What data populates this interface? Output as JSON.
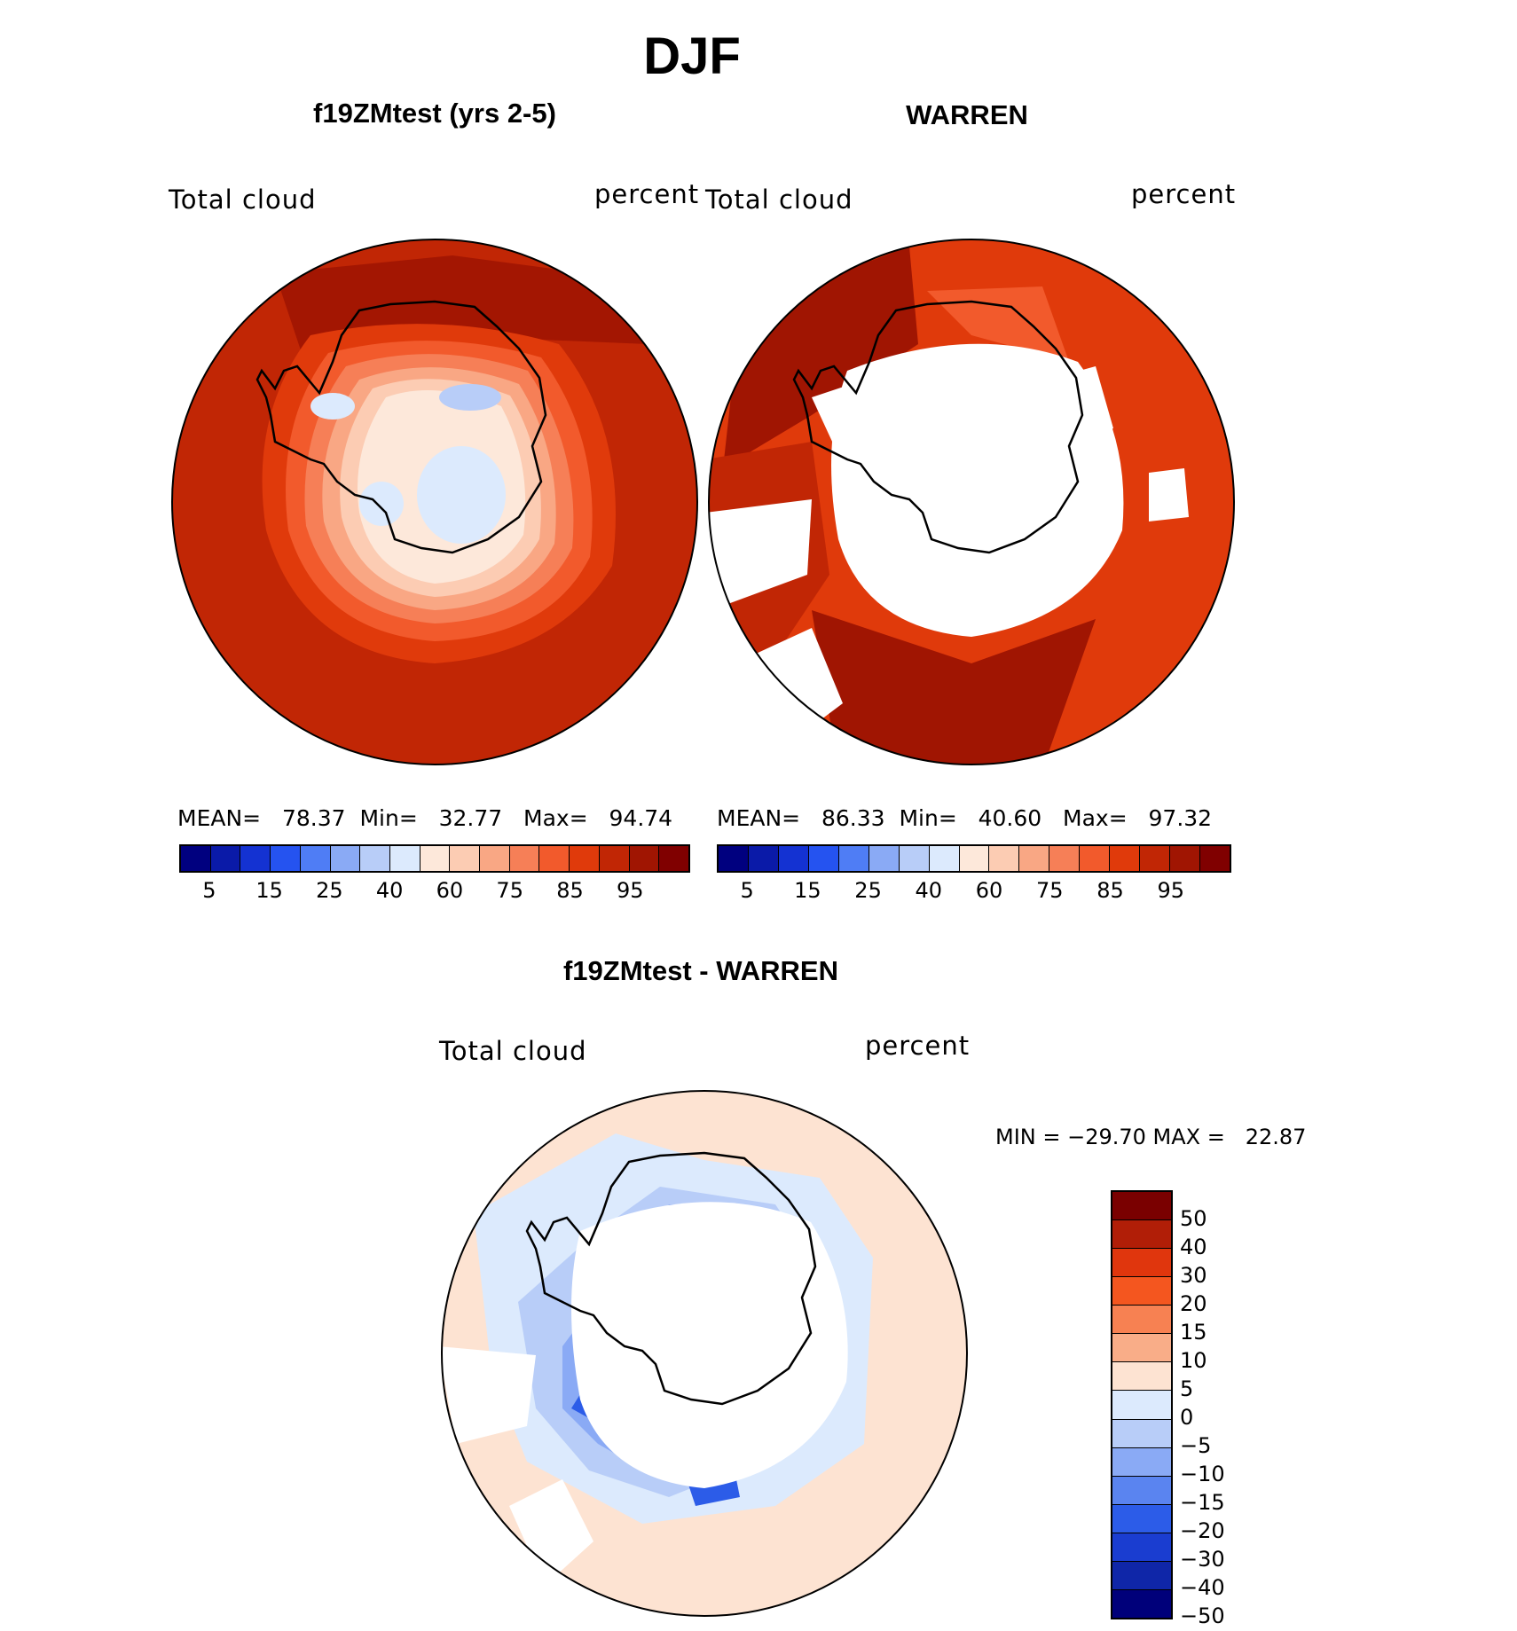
{
  "figure": {
    "title": "DJF",
    "colors": {
      "levels_19": [
        "#00007f",
        "#0a1aa8",
        "#1432d2",
        "#2553f0",
        "#4f7df5",
        "#8aaaf5",
        "#b8cdf8",
        "#dceafd",
        "#fde8da",
        "#fcccb3",
        "#f9a784",
        "#f67f57",
        "#f25a2c",
        "#e03a0b",
        "#c12605",
        "#a01502",
        "#800000"
      ],
      "diff_levels": [
        "#7a0000",
        "#b11e07",
        "#e0360d",
        "#f4561f",
        "#f78152",
        "#f9ad88",
        "#fde3d2",
        "#dceafd",
        "#b8cdf8",
        "#8aaaf5",
        "#5a84f0",
        "#2c5ce8",
        "#1a3dd0",
        "#0f26a8",
        "#00007a"
      ]
    }
  },
  "panels": [
    {
      "id": "model",
      "title": "f19ZMtest (yrs 2-5)",
      "left_label": "Total cloud",
      "right_label": "percent",
      "stats": {
        "mean_label": "MEAN=",
        "mean": "78.37",
        "min_label": "Min=",
        "min": "32.77",
        "max_label": "Max=",
        "max": "94.74"
      },
      "colorbar_ticks": [
        "5",
        "15",
        "25",
        "40",
        "60",
        "75",
        "85",
        "95"
      ]
    },
    {
      "id": "obs",
      "title": "WARREN",
      "left_label": "Total cloud",
      "right_label": "percent",
      "stats": {
        "mean_label": "MEAN=",
        "mean": "86.33",
        "min_label": "Min=",
        "min": "40.60",
        "max_label": "Max=",
        "max": "97.32"
      },
      "colorbar_ticks": [
        "5",
        "15",
        "25",
        "40",
        "60",
        "75",
        "85",
        "95"
      ]
    }
  ],
  "difference": {
    "title": "f19ZMtest - WARREN",
    "left_label": "Total cloud",
    "right_label": "percent",
    "minmax_text": "MIN = −29.70 MAX =   22.87",
    "colorbar_ticks": [
      "50",
      "40",
      "30",
      "20",
      "15",
      "10",
      "5",
      "0",
      "−5",
      "−10",
      "−15",
      "−20",
      "−30",
      "−40",
      "−50"
    ]
  }
}
